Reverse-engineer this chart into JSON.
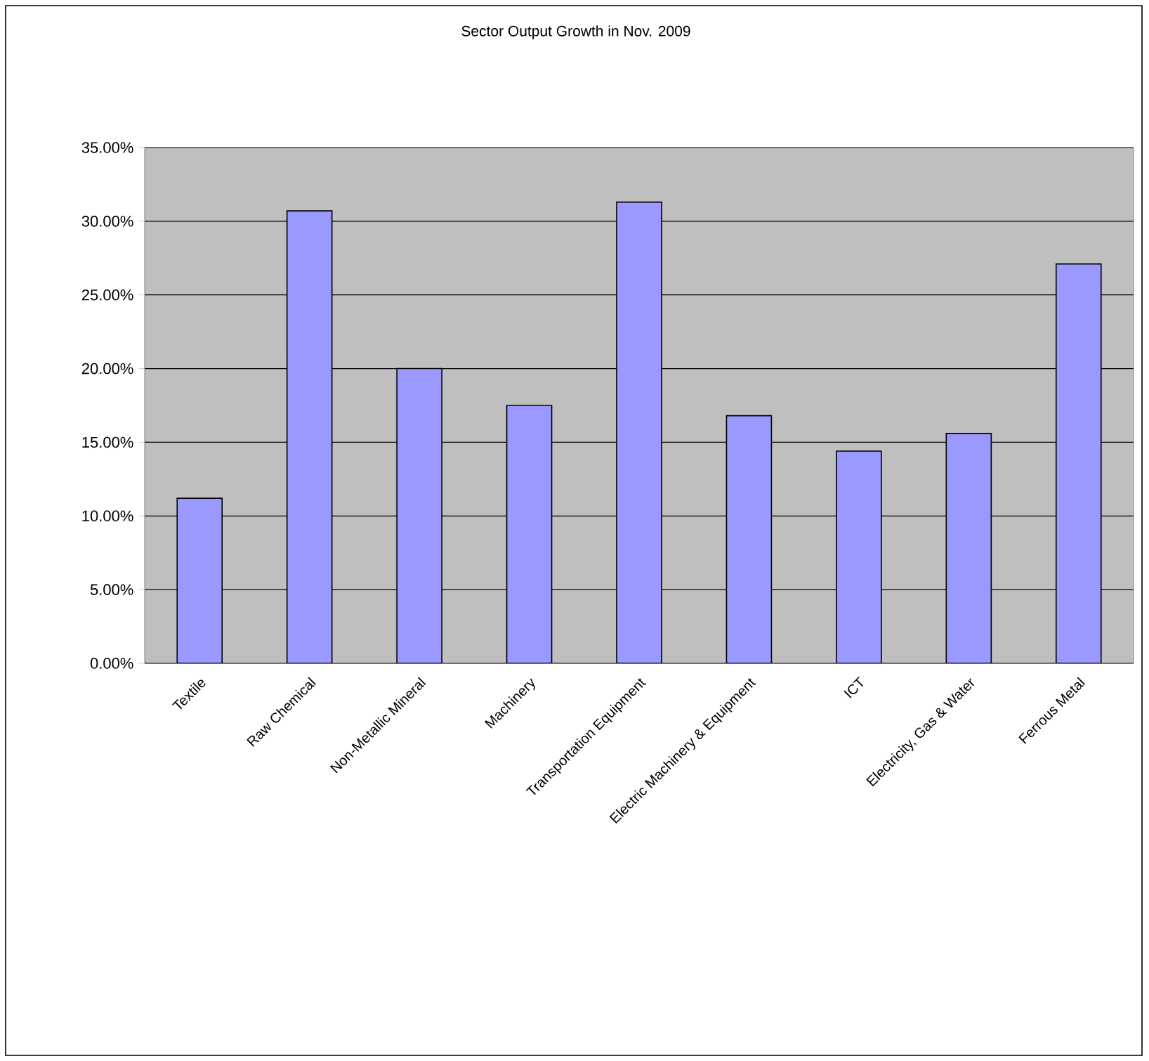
{
  "chart_data": {
    "type": "bar",
    "title": "Sector Output Growth in Nov. 2009",
    "categories": [
      "Textile",
      "Raw Chemical",
      "Non-Metallic Mineral",
      "Machinery",
      "Transportation Equipment",
      "Electric Machinery & Equipment",
      "ICT",
      "Electricity, Gas & Water",
      "Ferrous Metal"
    ],
    "values": [
      11.2,
      30.7,
      20.0,
      17.5,
      31.3,
      16.8,
      14.4,
      15.6,
      27.1
    ],
    "color": "#9999ff",
    "ylim": [
      0,
      35
    ],
    "yticks": [
      {
        "value": 0,
        "label": "0.00%"
      },
      {
        "value": 5,
        "label": "5.00%"
      },
      {
        "value": 10,
        "label": "10.00%"
      },
      {
        "value": 15,
        "label": "15.00%"
      },
      {
        "value": 20,
        "label": "20.00%"
      },
      {
        "value": 25,
        "label": "25.00%"
      },
      {
        "value": 30,
        "label": "30.00%"
      },
      {
        "value": 35,
        "label": "35.00%"
      }
    ],
    "grid": "y"
  }
}
